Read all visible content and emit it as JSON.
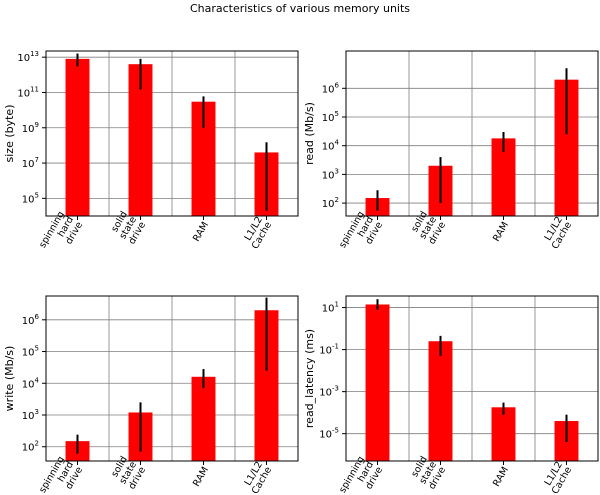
{
  "figure": {
    "title": "Characteristics of various memory units"
  },
  "chart_data": [
    {
      "type": "bar",
      "scale": "log",
      "ylabel": "size (byte)",
      "ylim_exponent": [
        4,
        13.35
      ],
      "yticks": [
        {
          "exp": 13,
          "label": "13"
        },
        {
          "exp": 11,
          "label": "11"
        },
        {
          "exp": 9,
          "label": "9"
        },
        {
          "exp": 7,
          "label": "7"
        },
        {
          "exp": 5,
          "label": "5"
        }
      ],
      "categories": [
        [
          "spinning",
          "hard",
          "drive"
        ],
        [
          "solid",
          "state",
          "drive"
        ],
        [
          "RAM"
        ],
        [
          "L1/L2",
          "Cache"
        ]
      ],
      "values": [
        8000000000000.0,
        4000000000000.0,
        30000000000.0,
        40000000.0
      ],
      "err_low": [
        3000000000000.0,
        150000000000.0,
        1000000000.0,
        20000.0
      ],
      "err_high": [
        16000000000000.0,
        8000000000000.0,
        60000000000.0,
        150000000.0
      ],
      "bar_color": "#ff0000",
      "grid": true
    },
    {
      "type": "bar",
      "scale": "log",
      "ylabel": "read (Mb/s)",
      "ylim_exponent": [
        1.55,
        7.3
      ],
      "yticks": [
        {
          "exp": 6,
          "label": "6"
        },
        {
          "exp": 5,
          "label": "5"
        },
        {
          "exp": 4,
          "label": "4"
        },
        {
          "exp": 3,
          "label": "3"
        },
        {
          "exp": 2,
          "label": "2"
        }
      ],
      "categories": [
        [
          "spinning",
          "hard",
          "drive"
        ],
        [
          "solid",
          "state",
          "drive"
        ],
        [
          "RAM"
        ],
        [
          "L1/L2",
          "Cache"
        ]
      ],
      "values": [
        150,
        2000,
        18000,
        2000000
      ],
      "err_low": [
        55,
        100,
        6000,
        25000
      ],
      "err_high": [
        280,
        4000,
        30000,
        5000000
      ],
      "bar_color": "#ff0000",
      "grid": true
    },
    {
      "type": "bar",
      "scale": "log",
      "ylabel": "write (Mb/s)",
      "ylim_exponent": [
        1.55,
        6.75
      ],
      "yticks": [
        {
          "exp": 6,
          "label": "6"
        },
        {
          "exp": 5,
          "label": "5"
        },
        {
          "exp": 4,
          "label": "4"
        },
        {
          "exp": 3,
          "label": "3"
        },
        {
          "exp": 2,
          "label": "2"
        }
      ],
      "categories": [
        [
          "spinning",
          "hard",
          "drive"
        ],
        [
          "solid",
          "state",
          "drive"
        ],
        [
          "RAM"
        ],
        [
          "L1/L2",
          "Cache"
        ]
      ],
      "values": [
        150,
        1200,
        16000,
        2000000
      ],
      "err_low": [
        60,
        70,
        7000,
        25000
      ],
      "err_high": [
        240,
        2500,
        28000,
        5000000
      ],
      "bar_color": "#ff0000",
      "grid": true
    },
    {
      "type": "bar",
      "scale": "log",
      "ylabel": "read_latency (ms)",
      "ylim_exponent": [
        -6.3,
        1.55
      ],
      "yticks": [
        {
          "exp": 1,
          "label": "1"
        },
        {
          "exp": -1,
          "label": "-1"
        },
        {
          "exp": -3,
          "label": "-3"
        },
        {
          "exp": -5,
          "label": "-5"
        }
      ],
      "categories": [
        [
          "spinning",
          "hard",
          "drive"
        ],
        [
          "solid",
          "state",
          "drive"
        ],
        [
          "RAM"
        ],
        [
          "L1/L2",
          "Cache"
        ]
      ],
      "values": [
        14,
        0.25,
        0.00018,
        4e-05
      ],
      "err_low": [
        8,
        0.05,
        8e-05,
        4e-06
      ],
      "err_high": [
        25,
        0.45,
        0.0003,
        8e-05
      ],
      "bar_color": "#ff0000",
      "grid": true
    }
  ]
}
